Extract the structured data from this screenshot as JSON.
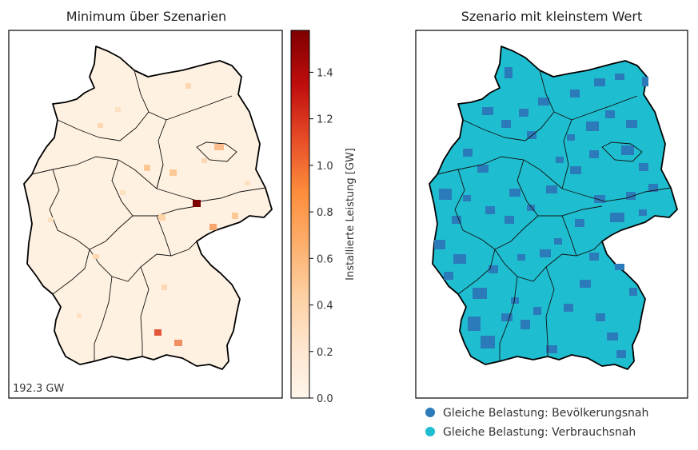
{
  "chart_data": [
    {
      "type": "heatmap",
      "title": "Minimum über Szenarien",
      "annotation": "192.3 GW",
      "colorbar": {
        "label": "Installierte Leistung [GW]",
        "range": [
          0.0,
          1.58
        ],
        "ticks": [
          {
            "value": 0.0,
            "label": "0.0"
          },
          {
            "value": 0.2,
            "label": "0.2"
          },
          {
            "value": 0.4,
            "label": "0.4"
          },
          {
            "value": 0.6,
            "label": "0.6"
          },
          {
            "value": 0.8,
            "label": "0.8"
          },
          {
            "value": 1.0,
            "label": "1.0"
          },
          {
            "value": 1.2,
            "label": "1.2"
          },
          {
            "value": 1.4,
            "label": "1.4"
          }
        ],
        "colors": [
          "#fff5eb",
          "#fee6ce",
          "#fdd0a2",
          "#fdae6b",
          "#fd8d3c",
          "#e84e28",
          "#c00d0d",
          "#7f0000"
        ]
      },
      "hotspots_gw": [
        1.58,
        0.75,
        0.65,
        0.55,
        0.45,
        0.3,
        0.3,
        0.3,
        0.25,
        0.2
      ]
    },
    {
      "type": "heatmap",
      "title": "Szenario mit kleinstem Wert",
      "legend_position": "bottom",
      "legend": [
        {
          "label": "Gleiche Belastung: Bevölkerungsnah",
          "color": "#2b7bba"
        },
        {
          "label": "Gleiche Belastung: Verbrauchsnah",
          "color": "#1ebed0"
        }
      ]
    }
  ]
}
